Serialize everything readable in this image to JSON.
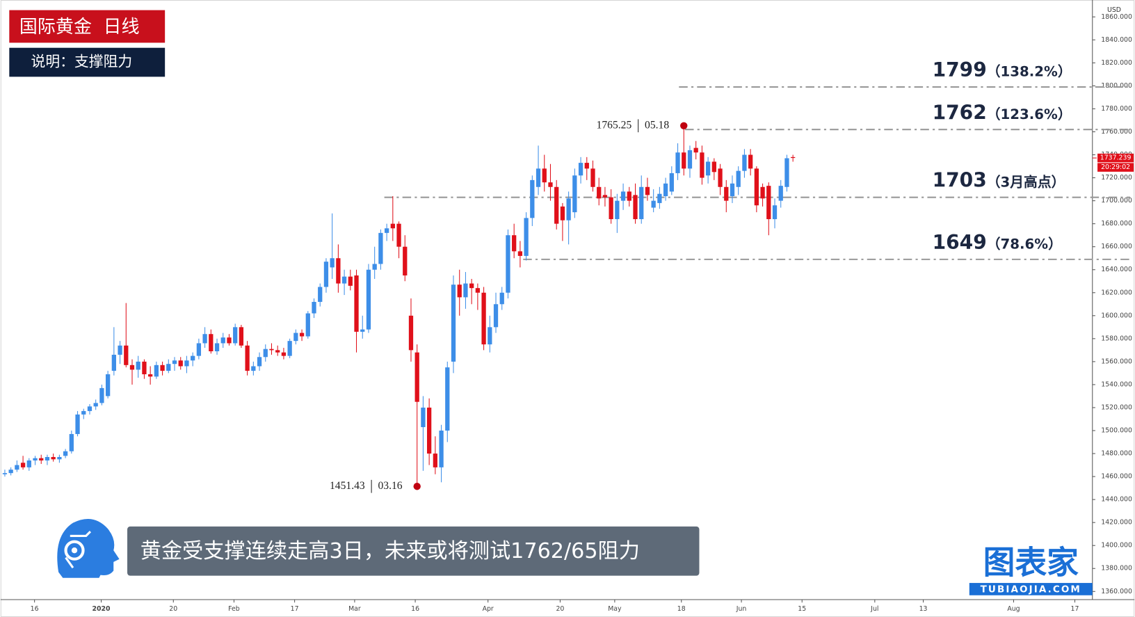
{
  "chart_data": {
    "type": "candlestick",
    "title": "国际黄金  日线",
    "subtitle": "说明：支撑阻力",
    "currency": "USD",
    "up_color": "#3d8ee8",
    "down_color": "#e0101a",
    "open": [
      1462,
      1463,
      1466,
      1472,
      1468,
      1474,
      1476,
      1474,
      1477,
      1475,
      1478,
      1482,
      1497,
      1514,
      1517,
      1521,
      1524,
      1530,
      1552,
      1566,
      1574,
      1557,
      1553,
      1560,
      1549,
      1547,
      1557,
      1552,
      1558,
      1561,
      1556,
      1561,
      1565,
      1576,
      1584,
      1569,
      1576,
      1581,
      1576,
      1590,
      1574,
      1552,
      1556,
      1564,
      1571,
      1570,
      1568,
      1565,
      1578,
      1585,
      1582,
      1602,
      1612,
      1625,
      1642,
      1650,
      1628,
      1634,
      1635,
      1586,
      1588,
      1640,
      1645,
      1672,
      1680,
      1680,
      1660,
      1600,
      1568,
      1503,
      1520,
      1480,
      1468,
      1500,
      1560,
      1627,
      1616,
      1628,
      1624,
      1620,
      1575,
      1590,
      1610,
      1620,
      1670,
      1656,
      1652,
      1685,
      1712,
      1728,
      1716,
      1712,
      1695,
      1683,
      1690,
      1722,
      1733,
      1728,
      1712,
      1705,
      1703,
      1684,
      1700,
      1708,
      1705,
      1684,
      1712,
      1694,
      1698,
      1704,
      1708,
      1724,
      1742,
      1728,
      1746,
      1742,
      1722,
      1734,
      1728,
      1712,
      1704,
      1712,
      1726,
      1740,
      1728,
      1712,
      1713,
      1684,
      1700,
      1712,
      1738
    ],
    "high": [
      1466,
      1468,
      1474,
      1478,
      1476,
      1478,
      1479,
      1479,
      1480,
      1479,
      1484,
      1500,
      1517,
      1519,
      1523,
      1527,
      1540,
      1552,
      1590,
      1578,
      1611,
      1562,
      1565,
      1562,
      1556,
      1560,
      1560,
      1562,
      1564,
      1564,
      1565,
      1568,
      1580,
      1590,
      1588,
      1580,
      1585,
      1584,
      1593,
      1592,
      1578,
      1560,
      1568,
      1575,
      1576,
      1574,
      1572,
      1580,
      1588,
      1588,
      1604,
      1615,
      1628,
      1650,
      1689,
      1662,
      1640,
      1640,
      1640,
      1600,
      1645,
      1660,
      1675,
      1680,
      1704,
      1682,
      1670,
      1615,
      1575,
      1530,
      1528,
      1495,
      1505,
      1560,
      1635,
      1640,
      1638,
      1632,
      1628,
      1625,
      1600,
      1620,
      1625,
      1675,
      1680,
      1665,
      1690,
      1722,
      1748,
      1740,
      1732,
      1718,
      1698,
      1708,
      1728,
      1738,
      1738,
      1735,
      1720,
      1712,
      1710,
      1706,
      1715,
      1712,
      1715,
      1722,
      1720,
      1710,
      1712,
      1720,
      1730,
      1750,
      1765.25,
      1748,
      1752,
      1748,
      1738,
      1737,
      1732,
      1718,
      1722,
      1730,
      1745,
      1745,
      1730,
      1715,
      1716,
      1702,
      1718,
      1740,
      1740
    ],
    "low": [
      1460,
      1461,
      1464,
      1466,
      1465,
      1470,
      1471,
      1470,
      1473,
      1472,
      1476,
      1480,
      1495,
      1510,
      1514,
      1518,
      1522,
      1528,
      1548,
      1558,
      1555,
      1540,
      1546,
      1545,
      1540,
      1545,
      1548,
      1550,
      1552,
      1553,
      1550,
      1556,
      1562,
      1572,
      1567,
      1566,
      1572,
      1574,
      1574,
      1572,
      1548,
      1548,
      1552,
      1560,
      1566,
      1565,
      1562,
      1563,
      1575,
      1578,
      1580,
      1598,
      1608,
      1620,
      1632,
      1620,
      1618,
      1622,
      1568,
      1580,
      1585,
      1632,
      1640,
      1665,
      1665,
      1650,
      1630,
      1560,
      1451.43,
      1465,
      1470,
      1462,
      1455,
      1490,
      1550,
      1600,
      1606,
      1610,
      1605,
      1570,
      1568,
      1585,
      1605,
      1615,
      1650,
      1642,
      1648,
      1678,
      1705,
      1708,
      1700,
      1675,
      1665,
      1662,
      1685,
      1715,
      1718,
      1708,
      1696,
      1695,
      1680,
      1672,
      1692,
      1695,
      1680,
      1680,
      1700,
      1690,
      1693,
      1700,
      1705,
      1718,
      1722,
      1720,
      1736,
      1714,
      1715,
      1718,
      1705,
      1690,
      1698,
      1705,
      1720,
      1722,
      1690,
      1695,
      1670,
      1676,
      1694,
      1708,
      1734
    ],
    "close": [
      1463,
      1466,
      1470,
      1468,
      1474,
      1476,
      1474,
      1477,
      1475,
      1477,
      1482,
      1497,
      1514,
      1517,
      1521,
      1524,
      1537,
      1549,
      1566,
      1574,
      1557,
      1553,
      1560,
      1549,
      1547,
      1557,
      1552,
      1558,
      1561,
      1556,
      1561,
      1565,
      1576,
      1584,
      1569,
      1576,
      1581,
      1576,
      1590,
      1574,
      1552,
      1556,
      1564,
      1571,
      1570,
      1568,
      1565,
      1578,
      1585,
      1582,
      1602,
      1612,
      1625,
      1647,
      1650,
      1628,
      1634,
      1626,
      1586,
      1588,
      1640,
      1645,
      1672,
      1676,
      1676,
      1660,
      1635,
      1570,
      1525,
      1520,
      1480,
      1468,
      1500,
      1555,
      1627,
      1616,
      1628,
      1624,
      1620,
      1575,
      1590,
      1610,
      1620,
      1670,
      1656,
      1652,
      1685,
      1718,
      1728,
      1716,
      1712,
      1680,
      1683,
      1702,
      1722,
      1733,
      1728,
      1712,
      1702,
      1703,
      1684,
      1700,
      1708,
      1700,
      1684,
      1712,
      1705,
      1700,
      1706,
      1715,
      1724,
      1742,
      1728,
      1744,
      1742,
      1720,
      1734,
      1725,
      1712,
      1700,
      1715,
      1726,
      1740,
      1728,
      1696,
      1702,
      1684,
      1696,
      1713,
      1737,
      1737.239
    ],
    "ylim": [
      1352.9,
      1874.7
    ],
    "yticks": [
      {
        "value": 1360,
        "label": "1360.000"
      },
      {
        "value": 1380,
        "label": "1380.000"
      },
      {
        "value": 1400,
        "label": "1400.000"
      },
      {
        "value": 1420,
        "label": "1420.000"
      },
      {
        "value": 1440,
        "label": "1440.000"
      },
      {
        "value": 1460,
        "label": "1460.000"
      },
      {
        "value": 1480,
        "label": "1480.000"
      },
      {
        "value": 1500,
        "label": "1500.000"
      },
      {
        "value": 1520,
        "label": "1520.000"
      },
      {
        "value": 1540,
        "label": "1540.000"
      },
      {
        "value": 1560,
        "label": "1560.000"
      },
      {
        "value": 1580,
        "label": "1580.000"
      },
      {
        "value": 1600,
        "label": "1600.000"
      },
      {
        "value": 1620,
        "label": "1620.000"
      },
      {
        "value": 1640,
        "label": "1640.000"
      },
      {
        "value": 1660,
        "label": "1660.000"
      },
      {
        "value": 1680,
        "label": "1680.000"
      },
      {
        "value": 1700,
        "label": "1700.000"
      },
      {
        "value": 1720,
        "label": "1720.000"
      },
      {
        "value": 1740,
        "label": "1740.000"
      },
      {
        "value": 1760,
        "label": "1760.000"
      },
      {
        "value": 1780,
        "label": "1780.000"
      },
      {
        "value": 1800,
        "label": "1800.000"
      },
      {
        "value": 1820,
        "label": "1820.000"
      },
      {
        "value": 1840,
        "label": "1840.000"
      },
      {
        "value": 1860,
        "label": "1860.000"
      }
    ],
    "xlim": [
      -0.7,
      179.4
    ],
    "xticks": [
      {
        "value": 4.9,
        "label": "16"
      },
      {
        "value": 15.9,
        "label": "2020"
      },
      {
        "value": 27.8,
        "label": "20"
      },
      {
        "value": 37.8,
        "label": "Feb"
      },
      {
        "value": 47.8,
        "label": "17"
      },
      {
        "value": 57.7,
        "label": "Mar"
      },
      {
        "value": 67.7,
        "label": "16"
      },
      {
        "value": 79.7,
        "label": "Apr"
      },
      {
        "value": 91.6,
        "label": "20"
      },
      {
        "value": 100.6,
        "label": "May"
      },
      {
        "value": 111.6,
        "label": "18"
      },
      {
        "value": 121.5,
        "label": "Jun"
      },
      {
        "value": 131.5,
        "label": "15"
      },
      {
        "value": 143.5,
        "label": "Jul"
      },
      {
        "value": 151.5,
        "label": "13"
      },
      {
        "value": 166.4,
        "label": "Aug"
      },
      {
        "value": 176.5,
        "label": "17"
      }
    ],
    "levels": [
      {
        "value": 1799,
        "note": "（138.2%）",
        "from": 111.2
      },
      {
        "value": 1762,
        "note": "（123.6%）",
        "from": 112.2
      },
      {
        "value": 1703,
        "note": "（3月高点）",
        "from": 62.6
      },
      {
        "value": 1649,
        "note": "（78.6%）",
        "from": 85.5
      }
    ],
    "annotations": [
      {
        "value": 1765.25,
        "date": "05.18",
        "index": 112
      },
      {
        "value": 1451.43,
        "date": "03.16",
        "index": 68
      }
    ],
    "last_price": 1737.239,
    "countdown": "20:29:02",
    "caption": "黄金受支撑连续走高3日，未来或将测试1762/65阻力",
    "brand": {
      "name": "图表家",
      "url": "TUBIAOJIA.COM"
    }
  }
}
